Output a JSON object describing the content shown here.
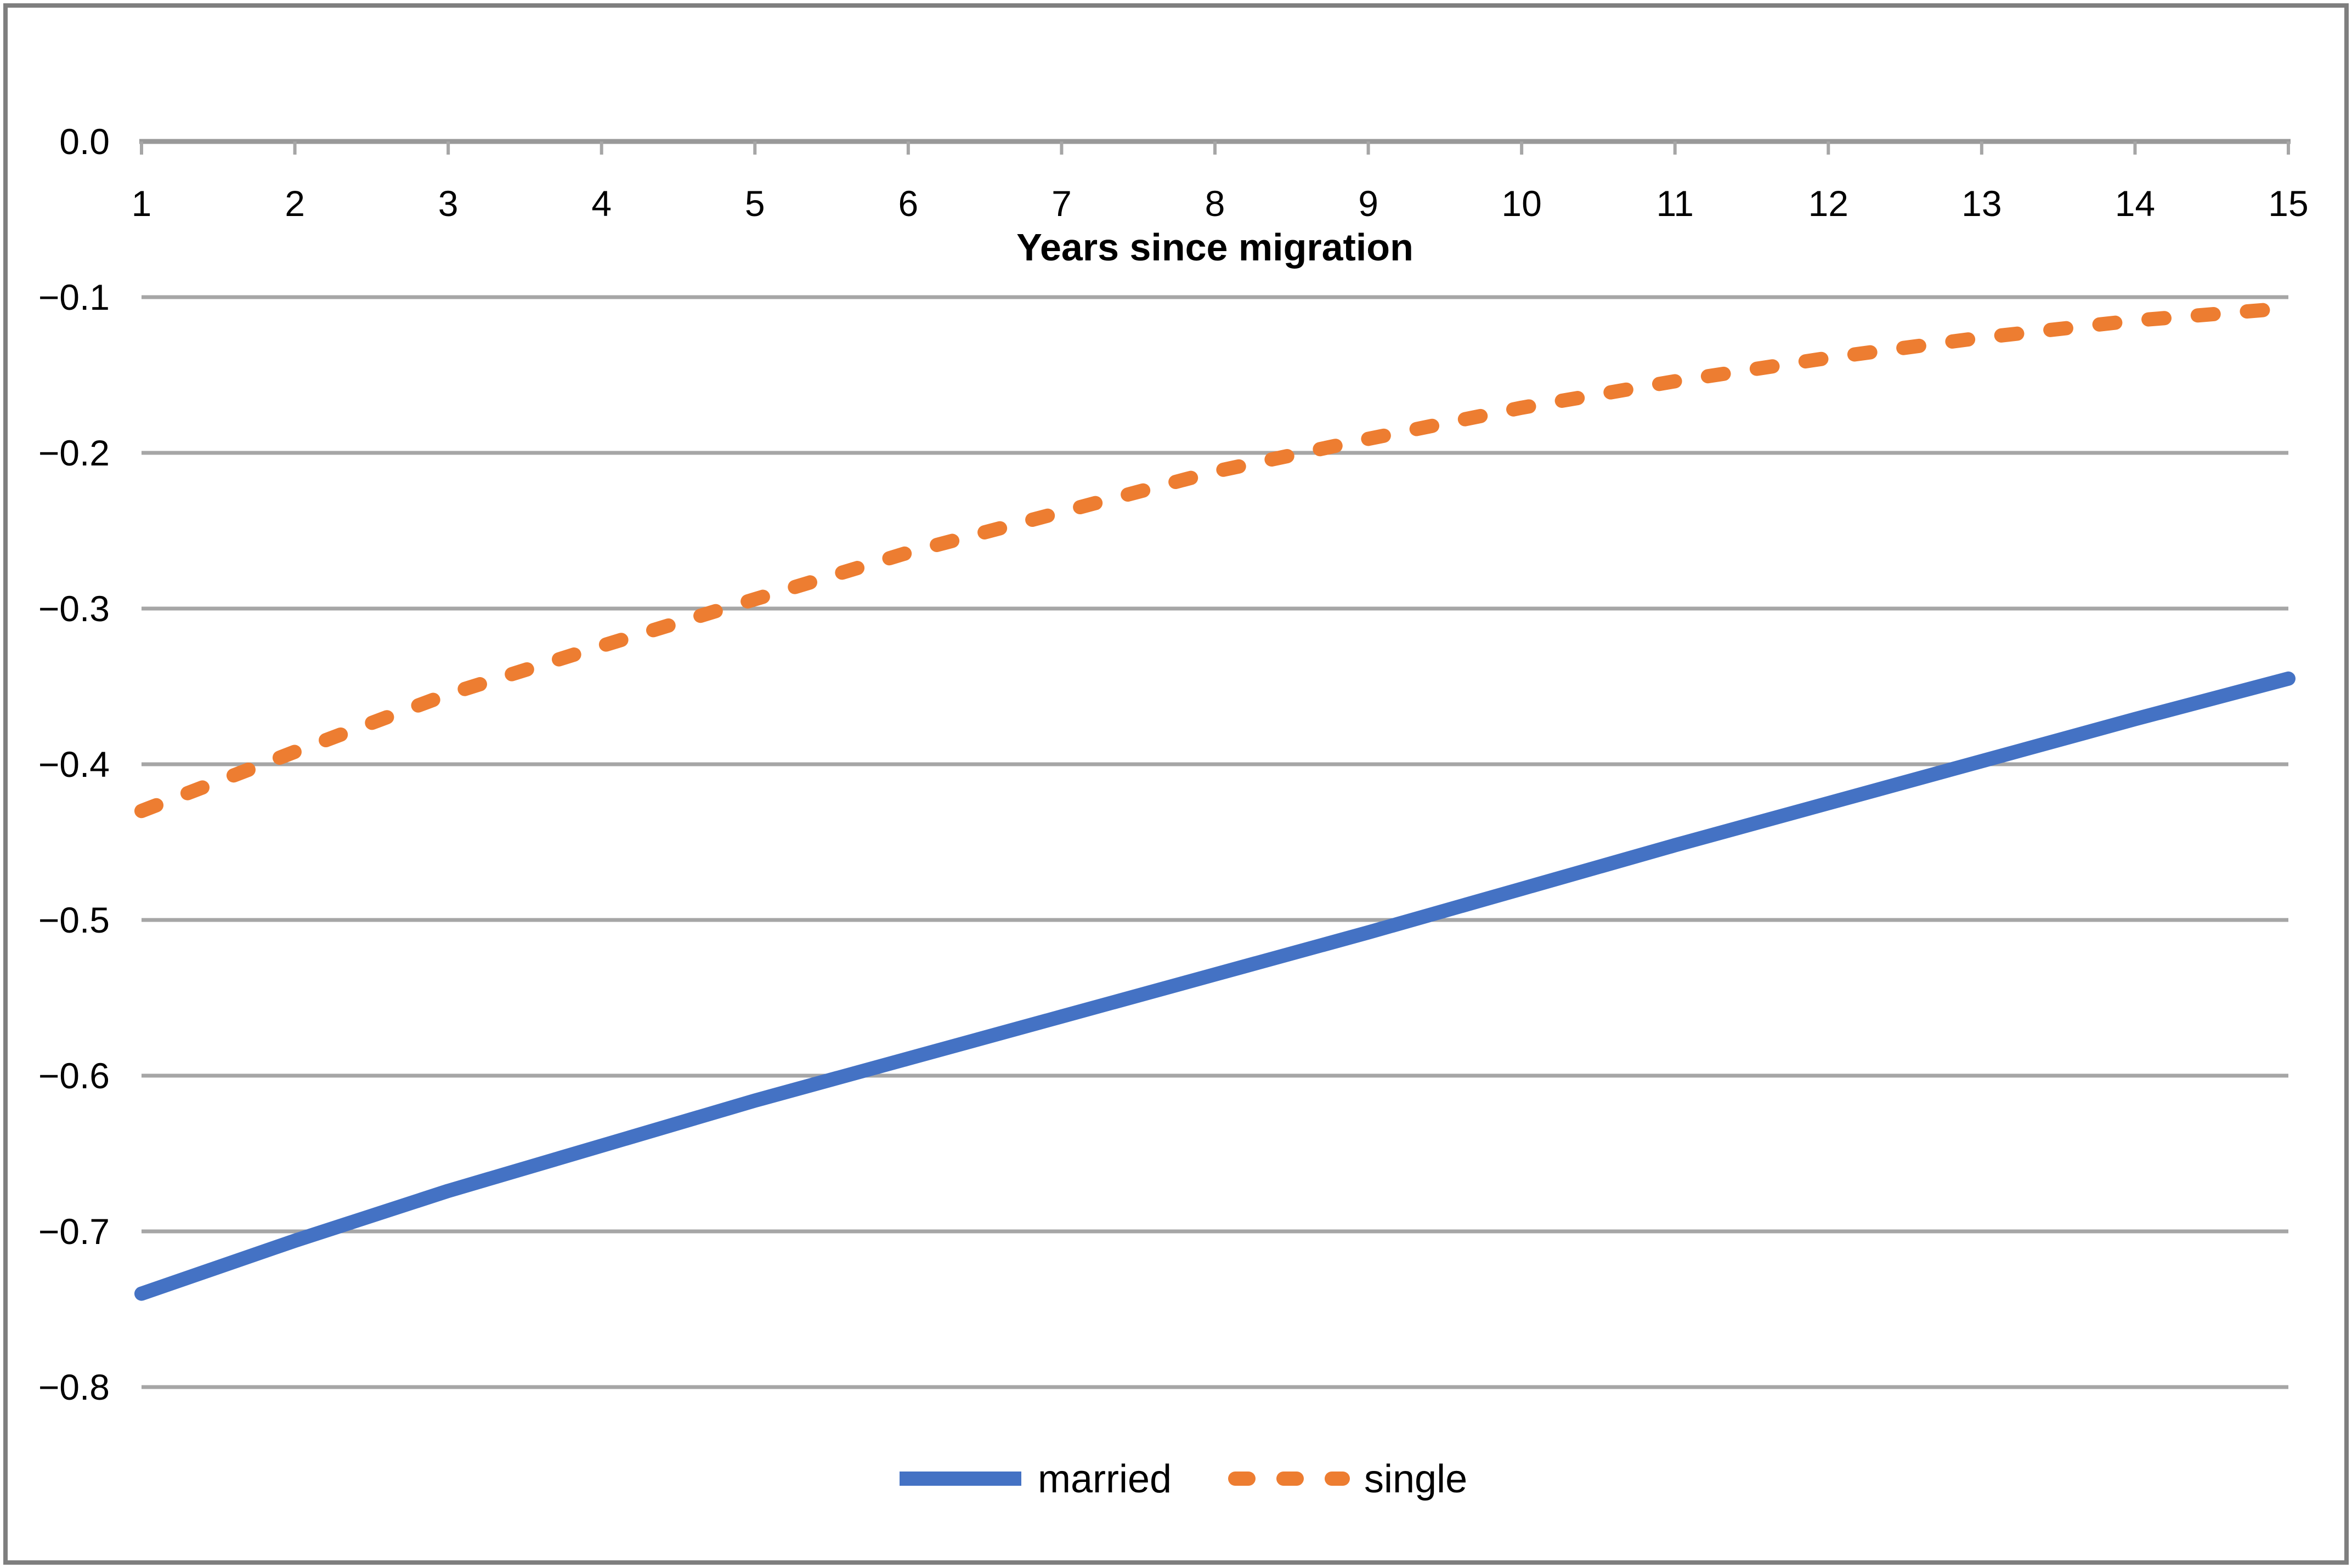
{
  "chart_data": {
    "type": "line",
    "x": [
      1,
      2,
      3,
      4,
      5,
      6,
      7,
      8,
      9,
      10,
      11,
      12,
      13,
      14,
      15
    ],
    "xtick_labels": [
      "1",
      "2",
      "3",
      "4",
      "5",
      "6",
      "7",
      "8",
      "9",
      "10",
      "11",
      "12",
      "13",
      "14",
      "15"
    ],
    "ytick_labels": [
      "0.0",
      "−0.1",
      "−0.2",
      "−0.3",
      "−0.4",
      "−0.5",
      "−0.6",
      "−0.7",
      "−0.8"
    ],
    "yticks": [
      0,
      -0.1,
      -0.2,
      -0.3,
      -0.4,
      -0.5,
      -0.6,
      -0.7,
      -0.8
    ],
    "ylim": [
      -0.8,
      0.0
    ],
    "xlabel": "Years since migration",
    "ylabel": "",
    "title": "",
    "grid": true,
    "legend_position": "bottom-center",
    "series": [
      {
        "name": "married",
        "line_style": "solid",
        "color": "#4472C4",
        "values": [
          -0.74,
          -0.706,
          -0.674,
          -0.645,
          -0.616,
          -0.589,
          -0.562,
          -0.535,
          -0.508,
          -0.48,
          -0.452,
          -0.425,
          -0.398,
          -0.371,
          -0.345
        ]
      },
      {
        "name": "single",
        "line_style": "dashed",
        "color": "#ED7D31",
        "values": [
          -0.43,
          -0.392,
          -0.355,
          -0.324,
          -0.294,
          -0.264,
          -0.238,
          -0.212,
          -0.191,
          -0.171,
          -0.154,
          -0.139,
          -0.126,
          -0.115,
          -0.107
        ]
      }
    ]
  },
  "colors": {
    "background": "#FFFFFF",
    "figure_border": "#7F7F7F",
    "axis_line": "#999999",
    "gridline": "#A6A6A6",
    "tick": "#A6A6A6",
    "text": "#000000",
    "married": "#4472C4",
    "single": "#ED7D31"
  }
}
